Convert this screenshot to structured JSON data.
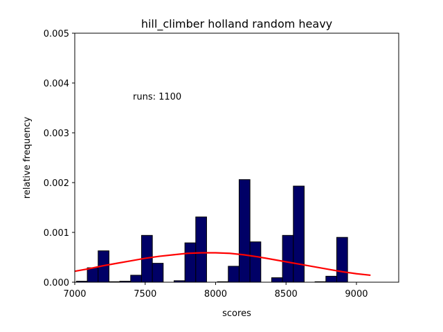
{
  "chart_data": {
    "type": "bar",
    "title": "hill_climber holland random heavy",
    "xlabel": "scores",
    "ylabel": "relative frequency",
    "xlim": [
      7000,
      9300
    ],
    "ylim": [
      0,
      0.005
    ],
    "xticks": [
      7000,
      7500,
      8000,
      8500,
      9000
    ],
    "yticks": [
      "0.000",
      "0.001",
      "0.002",
      "0.003",
      "0.004",
      "0.005"
    ],
    "annotation": "runs: 1100",
    "bin_width": 77,
    "bars": [
      {
        "x": 7012,
        "value": 2e-05
      },
      {
        "x": 7089,
        "value": 0.00029
      },
      {
        "x": 7166,
        "value": 0.00063
      },
      {
        "x": 7243,
        "value": 1e-05
      },
      {
        "x": 7320,
        "value": 2e-05
      },
      {
        "x": 7397,
        "value": 0.00014
      },
      {
        "x": 7474,
        "value": 0.00094
      },
      {
        "x": 7551,
        "value": 0.00038
      },
      {
        "x": 7705,
        "value": 3e-05
      },
      {
        "x": 7782,
        "value": 0.00079
      },
      {
        "x": 7859,
        "value": 0.00131
      },
      {
        "x": 8013,
        "value": 1e-05
      },
      {
        "x": 8090,
        "value": 0.00032
      },
      {
        "x": 8167,
        "value": 0.00206
      },
      {
        "x": 8244,
        "value": 0.00081
      },
      {
        "x": 8398,
        "value": 9e-05
      },
      {
        "x": 8475,
        "value": 0.00094
      },
      {
        "x": 8552,
        "value": 0.00193
      },
      {
        "x": 8706,
        "value": 1e-05
      },
      {
        "x": 8783,
        "value": 0.00012
      },
      {
        "x": 8860,
        "value": 0.0009
      }
    ],
    "curve": {
      "x": [
        7000,
        7100,
        7200,
        7300,
        7400,
        7500,
        7600,
        7700,
        7800,
        7900,
        8000,
        8100,
        8200,
        8300,
        8400,
        8500,
        8600,
        8700,
        8800,
        8900,
        9000,
        9100
      ],
      "y": [
        0.00022,
        0.00027,
        0.00033,
        0.00038,
        0.00043,
        0.00048,
        0.00052,
        0.00055,
        0.00058,
        0.00059,
        0.00059,
        0.00058,
        0.00055,
        0.00051,
        0.00046,
        0.00041,
        0.00036,
        0.00031,
        0.00026,
        0.00021,
        0.00017,
        0.00014
      ]
    },
    "colors": {
      "bar_fill": "#000066",
      "bar_edge": "#000000",
      "curve": "#ff0000"
    }
  }
}
